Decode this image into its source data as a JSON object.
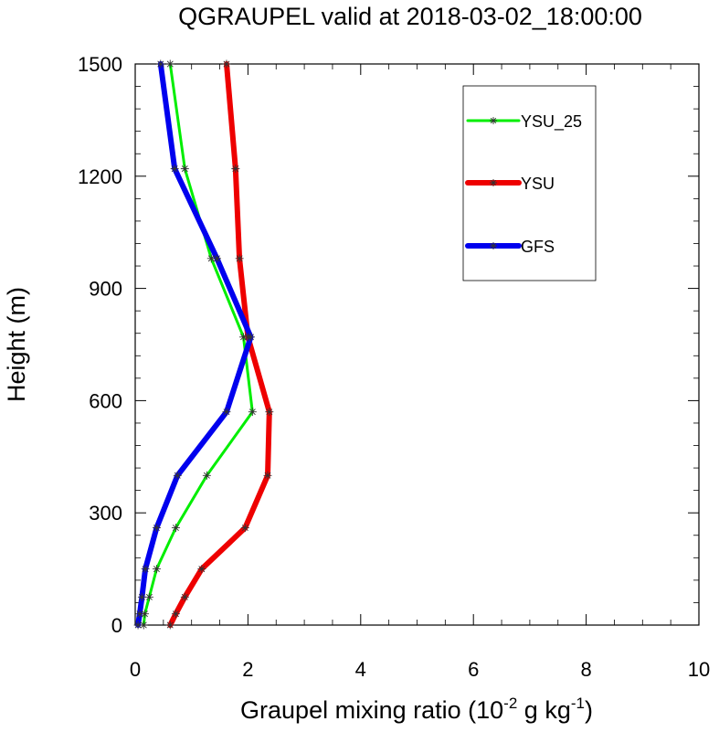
{
  "chart_data": {
    "type": "line",
    "title": "QGRAUPEL valid at 2018-03-02_18:00:00",
    "xlabel": "Graupel mixing ratio (10",
    "xlabel_exp1": "-2",
    "xlabel_mid": " g kg",
    "xlabel_exp2": "-1",
    "xlabel_end": ")",
    "ylabel": "Height (m)",
    "xlim": [
      0,
      10
    ],
    "ylim": [
      0,
      1500
    ],
    "xticks": [
      0,
      2,
      4,
      6,
      8,
      10
    ],
    "yticks": [
      0,
      300,
      600,
      900,
      1200,
      1500
    ],
    "xtick_labels": [
      "0",
      "2",
      "4",
      "6",
      "8",
      "10"
    ],
    "ytick_labels": [
      "0",
      "300",
      "600",
      "900",
      "1200",
      "1500"
    ],
    "grid": false,
    "legend_position": "top-right",
    "series": [
      {
        "name": "YSU_25",
        "color": "#00ee00",
        "points": [
          {
            "x": 0.15,
            "y": 0
          },
          {
            "x": 0.17,
            "y": 30
          },
          {
            "x": 0.25,
            "y": 75
          },
          {
            "x": 0.38,
            "y": 150
          },
          {
            "x": 0.72,
            "y": 260
          },
          {
            "x": 1.27,
            "y": 400
          },
          {
            "x": 2.08,
            "y": 570
          },
          {
            "x": 1.92,
            "y": 770
          },
          {
            "x": 1.35,
            "y": 980
          },
          {
            "x": 0.88,
            "y": 1220
          },
          {
            "x": 0.62,
            "y": 1500
          }
        ]
      },
      {
        "name": "YSU",
        "color": "#ee0000",
        "points": [
          {
            "x": 0.62,
            "y": 0
          },
          {
            "x": 0.72,
            "y": 30
          },
          {
            "x": 0.88,
            "y": 75
          },
          {
            "x": 1.18,
            "y": 150
          },
          {
            "x": 1.95,
            "y": 260
          },
          {
            "x": 2.35,
            "y": 400
          },
          {
            "x": 2.38,
            "y": 570
          },
          {
            "x": 2.0,
            "y": 770
          },
          {
            "x": 1.85,
            "y": 980
          },
          {
            "x": 1.78,
            "y": 1220
          },
          {
            "x": 1.62,
            "y": 1500
          }
        ]
      },
      {
        "name": "GFS",
        "color": "#0000ee",
        "points": [
          {
            "x": 0.05,
            "y": 0
          },
          {
            "x": 0.08,
            "y": 30
          },
          {
            "x": 0.12,
            "y": 75
          },
          {
            "x": 0.18,
            "y": 150
          },
          {
            "x": 0.38,
            "y": 260
          },
          {
            "x": 0.75,
            "y": 400
          },
          {
            "x": 1.62,
            "y": 570
          },
          {
            "x": 2.05,
            "y": 770
          },
          {
            "x": 1.45,
            "y": 980
          },
          {
            "x": 0.7,
            "y": 1220
          },
          {
            "x": 0.45,
            "y": 1500
          }
        ]
      }
    ]
  }
}
